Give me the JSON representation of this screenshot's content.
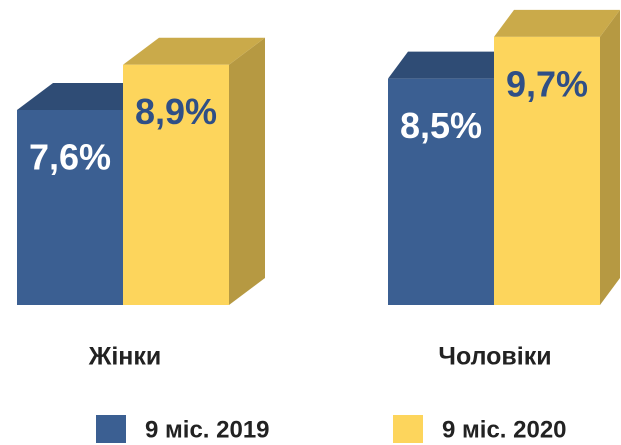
{
  "chart_data": {
    "type": "bar3d",
    "categories": [
      "Жінки",
      "Чоловіки"
    ],
    "series": [
      {
        "name": "9 міс. 2019",
        "color": "#3b5f92",
        "values": [
          7.6,
          8.5
        ],
        "value_labels": [
          "7,6%",
          "8,5%"
        ]
      },
      {
        "name": "9 міс. 2020",
        "color": "#fdd55c",
        "values": [
          8.9,
          9.7
        ],
        "value_labels": [
          "8,9%",
          "9,7%"
        ]
      }
    ],
    "ylim": [
      2,
      10.5
    ]
  }
}
